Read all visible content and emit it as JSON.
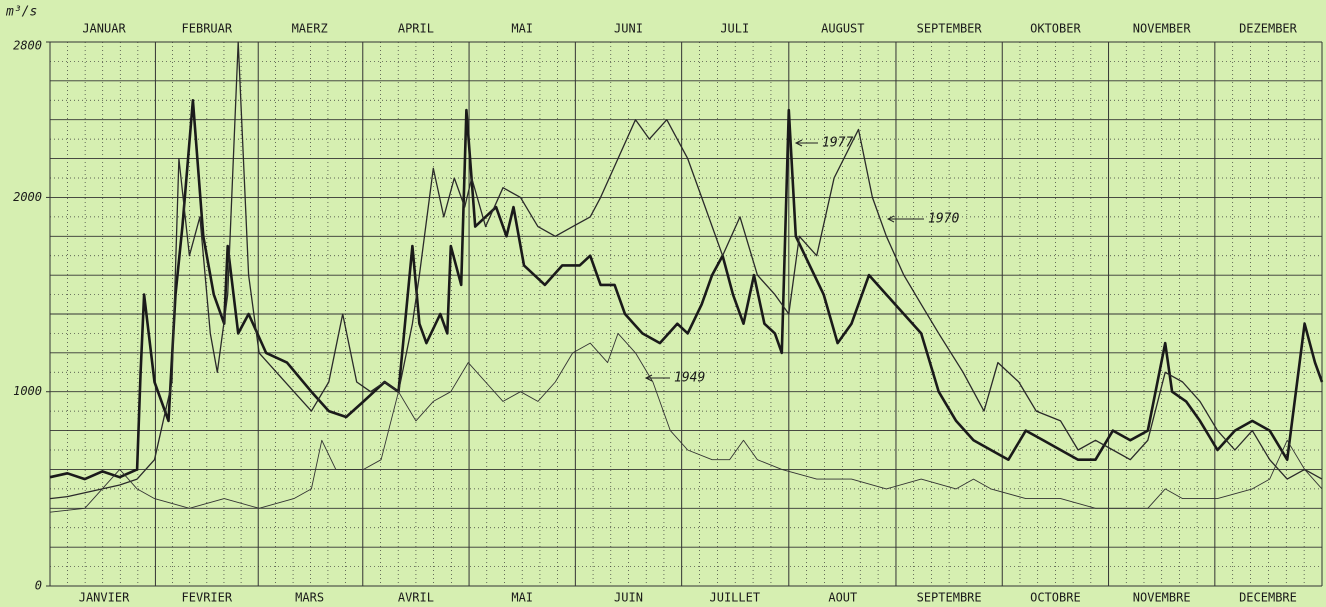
{
  "chart_data": {
    "type": "line",
    "y_label": "m³/s",
    "xlim": [
      0,
      365
    ],
    "ylim": [
      0,
      2800
    ],
    "yticks": [
      0,
      1000,
      2000,
      2800
    ],
    "grid": true,
    "xticks": [
      {
        "value": 15.5,
        "label": "JANUAR"
      },
      {
        "value": 45,
        "label": "FEBRUAR"
      },
      {
        "value": 74.5,
        "label": "MAERZ"
      },
      {
        "value": 105,
        "label": "APRIL"
      },
      {
        "value": 135.5,
        "label": "MAI"
      },
      {
        "value": 166,
        "label": "JUNI"
      },
      {
        "value": 196.5,
        "label": "JULI"
      },
      {
        "value": 227.5,
        "label": "AUGUST"
      },
      {
        "value": 258,
        "label": "SEPTEMBER"
      },
      {
        "value": 288.5,
        "label": "OKTOBER"
      },
      {
        "value": 319,
        "label": "NOVEMBER"
      },
      {
        "value": 349.5,
        "label": "DEZEMBER"
      }
    ],
    "x2ticks": [
      {
        "value": 15.5,
        "label": "JANVIER"
      },
      {
        "value": 45,
        "label": "FEVRIER"
      },
      {
        "value": 74.5,
        "label": "MARS"
      },
      {
        "value": 105,
        "label": "AVRIL"
      },
      {
        "value": 135.5,
        "label": "MAI"
      },
      {
        "value": 166,
        "label": "JUIN"
      },
      {
        "value": 196.5,
        "label": "JUILLET"
      },
      {
        "value": 227.5,
        "label": "AOUT"
      },
      {
        "value": 258,
        "label": "SEPTEMBRE"
      },
      {
        "value": 288.5,
        "label": "OCTOBRE"
      },
      {
        "value": 319,
        "label": "NOVEMBRE"
      },
      {
        "value": 349.5,
        "label": "DECEMBRE"
      }
    ],
    "series": [
      {
        "name": "1977",
        "color": "#1a1a1a",
        "width": 2.6,
        "x": [
          0,
          5,
          10,
          15,
          20,
          25,
          26,
          27,
          30,
          34,
          36,
          38,
          41,
          44,
          47,
          50,
          51,
          54,
          57,
          62,
          68,
          75,
          80,
          85,
          90,
          96,
          100,
          104,
          106,
          108,
          112,
          114,
          115,
          118,
          119.5,
          122,
          128,
          131,
          133,
          136,
          142,
          147,
          152,
          155,
          158,
          162,
          165,
          170,
          175,
          180,
          183,
          187,
          190,
          193,
          196,
          199,
          202,
          205,
          208,
          210,
          212,
          214,
          218,
          222,
          226,
          230,
          235,
          240,
          245,
          250,
          255,
          260,
          265,
          270,
          275,
          280,
          285,
          290,
          295,
          300,
          305,
          310,
          315,
          320,
          322,
          326,
          330,
          335,
          340,
          345,
          350,
          355,
          360,
          363,
          365
        ],
        "values": [
          560,
          580,
          550,
          590,
          560,
          600,
          1100,
          1500,
          1050,
          850,
          1500,
          1850,
          2500,
          1800,
          1500,
          1350,
          1750,
          1300,
          1400,
          1200,
          1150,
          1000,
          900,
          870,
          950,
          1050,
          1000,
          1750,
          1350,
          1250,
          1400,
          1300,
          1750,
          1550,
          2450,
          1850,
          1950,
          1800,
          1950,
          1650,
          1550,
          1650,
          1650,
          1700,
          1550,
          1550,
          1400,
          1300,
          1250,
          1350,
          1300,
          1450,
          1600,
          1700,
          1500,
          1350,
          1600,
          1350,
          1300,
          1200,
          2450,
          1800,
          1650,
          1500,
          1250,
          1350,
          1600,
          1500,
          1400,
          1300,
          1000,
          850,
          750,
          700,
          650,
          800,
          750,
          700,
          650,
          650,
          800,
          750,
          800,
          1250,
          1000,
          950,
          850,
          700,
          800,
          850,
          800,
          650,
          1350,
          1150,
          1050
        ]
      },
      {
        "name": "1970",
        "color": "#2a2a2a",
        "width": 1.3,
        "x": [
          0,
          5,
          10,
          15,
          20,
          25,
          30,
          35,
          37,
          40,
          43,
          46,
          48,
          51,
          54,
          57,
          60,
          65,
          70,
          75,
          80,
          84,
          88,
          92,
          96,
          100,
          104,
          106,
          110,
          113,
          116,
          119,
          121,
          125,
          130,
          135,
          140,
          145,
          150,
          155,
          158,
          163,
          168,
          172,
          177,
          183,
          188,
          193,
          198,
          203,
          208,
          212,
          215,
          220,
          225,
          232,
          236,
          240,
          245,
          250,
          255,
          262,
          268,
          272,
          278,
          283,
          290,
          295,
          300,
          305,
          310,
          315,
          320,
          325,
          330,
          335,
          340,
          345,
          350,
          355,
          360,
          365
        ],
        "values": [
          450,
          460,
          480,
          500,
          520,
          550,
          650,
          1050,
          2200,
          1700,
          1900,
          1300,
          1100,
          1500,
          2800,
          1600,
          1200,
          1100,
          1000,
          900,
          1050,
          1400,
          1050,
          1000,
          1050,
          1000,
          1350,
          1600,
          2150,
          1900,
          2100,
          1950,
          2100,
          1850,
          2050,
          2000,
          1850,
          1800,
          1850,
          1900,
          2000,
          2200,
          2400,
          2300,
          2400,
          2200,
          1950,
          1700,
          1900,
          1600,
          1500,
          1400,
          1800,
          1700,
          2100,
          2350,
          2000,
          1800,
          1600,
          1450,
          1300,
          1100,
          900,
          1150,
          1050,
          900,
          850,
          700,
          750,
          700,
          650,
          750,
          1100,
          1050,
          950,
          800,
          700,
          800,
          650,
          550,
          600,
          550
        ]
      },
      {
        "name": "1949",
        "color": "#333333",
        "width": 0.9,
        "x": [
          0,
          10,
          20,
          25,
          30,
          40,
          50,
          60,
          70,
          75,
          78,
          82,
          90,
          95,
          100,
          105,
          110,
          115,
          120,
          125,
          130,
          135,
          140,
          145,
          150,
          155,
          160,
          163,
          168,
          173,
          178,
          183,
          190,
          195,
          199,
          203,
          210,
          220,
          230,
          240,
          250,
          260,
          265,
          270,
          280,
          290,
          300,
          310,
          315,
          320,
          325,
          335,
          345,
          350,
          355,
          360,
          365
        ],
        "values": [
          380,
          400,
          600,
          500,
          450,
          400,
          450,
          400,
          450,
          500,
          750,
          600,
          600,
          650,
          1000,
          850,
          950,
          1000,
          1150,
          1050,
          950,
          1000,
          950,
          1050,
          1200,
          1250,
          1150,
          1300,
          1200,
          1050,
          800,
          700,
          650,
          650,
          750,
          650,
          600,
          550,
          550,
          500,
          550,
          500,
          550,
          500,
          450,
          450,
          400,
          400,
          400,
          500,
          450,
          450,
          500,
          550,
          750,
          600,
          500
        ]
      }
    ]
  }
}
